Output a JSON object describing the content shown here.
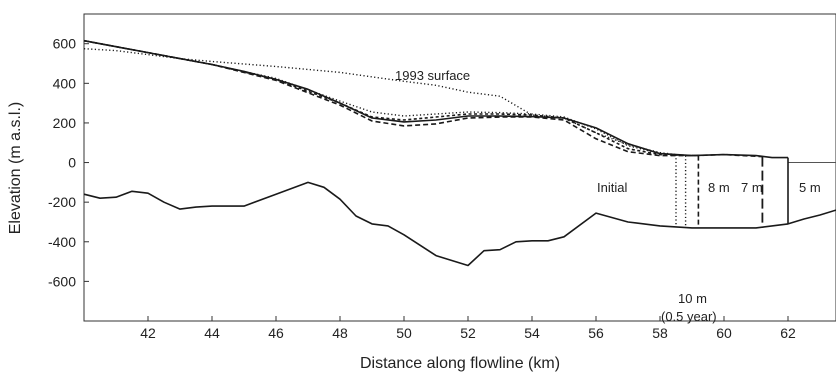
{
  "chart_data": {
    "type": "line",
    "title": "",
    "xlabel": "Distance along flowline (km)",
    "ylabel": "Elevation (m a.s.l.)",
    "xlim": [
      40,
      63.5
    ],
    "ylim": [
      -800,
      750
    ],
    "xticks": [
      42,
      44,
      46,
      48,
      50,
      52,
      54,
      56,
      58,
      60,
      62
    ],
    "yticks": [
      -600,
      -400,
      -200,
      0,
      200,
      400,
      600
    ],
    "grid": false,
    "series": [
      {
        "name": "1993 surface",
        "style": "dotted",
        "x": [
          40,
          41,
          42,
          43,
          44,
          46,
          48,
          50,
          51,
          52,
          53,
          54,
          55,
          56,
          57,
          58,
          58.5
        ],
        "y": [
          575,
          565,
          545,
          525,
          510,
          485,
          455,
          410,
          390,
          355,
          335,
          240,
          225,
          150,
          90,
          50,
          40
        ]
      },
      {
        "name": "5 m",
        "style": "solid",
        "x": [
          40,
          41,
          42,
          43,
          44,
          45,
          46,
          47,
          48,
          49,
          50,
          51,
          52,
          53,
          54,
          55,
          56,
          57,
          58,
          59,
          60,
          61,
          61.5,
          62
        ],
        "y": [
          615,
          585,
          555,
          525,
          495,
          460,
          420,
          370,
          300,
          225,
          205,
          215,
          235,
          235,
          232,
          225,
          175,
          95,
          45,
          35,
          40,
          35,
          25,
          25
        ]
      },
      {
        "name": "7 m",
        "style": "dashed",
        "x": [
          40,
          42,
          44,
          46,
          48,
          49,
          50,
          51,
          52,
          53,
          54,
          55,
          56,
          57,
          58,
          59,
          60,
          61.2
        ],
        "y": [
          615,
          555,
          495,
          415,
          290,
          210,
          185,
          195,
          225,
          230,
          230,
          215,
          120,
          55,
          35,
          35,
          40,
          30
        ]
      },
      {
        "name": "8 m",
        "style": "short-dashed",
        "x": [
          40,
          42,
          44,
          46,
          48,
          49,
          50,
          51,
          52,
          53,
          54,
          55,
          56,
          57,
          58,
          59.2
        ],
        "y": [
          615,
          555,
          495,
          420,
          300,
          230,
          215,
          230,
          245,
          245,
          240,
          225,
          150,
          70,
          40,
          35
        ]
      },
      {
        "name": "10 m (0.5 year)",
        "style": "dotted",
        "x": [
          40,
          42,
          44,
          46,
          48,
          49,
          50,
          51,
          52,
          53,
          54,
          55,
          56,
          57,
          58,
          58.8
        ],
        "y": [
          615,
          555,
          495,
          425,
          310,
          255,
          235,
          245,
          255,
          252,
          245,
          230,
          170,
          85,
          45,
          35
        ]
      },
      {
        "name": "bed",
        "style": "solid",
        "x": [
          40,
          40.5,
          41,
          41.5,
          42,
          42.5,
          43,
          43.5,
          44,
          44.5,
          45,
          46,
          47,
          47.5,
          48,
          48.5,
          49,
          49.5,
          50,
          51,
          52,
          52.5,
          53,
          53.5,
          54,
          54.5,
          55,
          56,
          57,
          58,
          59,
          60,
          61,
          62,
          62.5,
          63,
          63.5
        ],
        "y": [
          -160,
          -180,
          -175,
          -145,
          -155,
          -200,
          -235,
          -225,
          -220,
          -220,
          -220,
          -160,
          -100,
          -125,
          -185,
          -270,
          -310,
          -320,
          -365,
          -470,
          -520,
          -445,
          -440,
          -400,
          -395,
          -395,
          -375,
          -255,
          -300,
          -320,
          -330,
          -330,
          -330,
          -310,
          -285,
          -265,
          -240
        ]
      }
    ],
    "calving_fronts": [
      {
        "label": "Initial",
        "x": 58.5,
        "top": 40,
        "bottom": -315,
        "style": "dotted"
      },
      {
        "label": "10 m",
        "x": 58.8,
        "top": 35,
        "bottom": -320,
        "style": "dotted"
      },
      {
        "label": "8 m",
        "x": 59.2,
        "top": 35,
        "bottom": -325,
        "style": "dashed"
      },
      {
        "label": "7 m",
        "x": 61.2,
        "top": 30,
        "bottom": -330,
        "style": "long-dashed"
      },
      {
        "label": "5 m",
        "x": 62,
        "top": 25,
        "bottom": -310,
        "style": "solid"
      }
    ],
    "annotations": {
      "surface_1993": "1993 surface",
      "initial": "Initial",
      "m10": "10 m",
      "year": "(0.5 year)",
      "m8": "8 m",
      "m7": "7 m",
      "m5": "5 m"
    }
  }
}
